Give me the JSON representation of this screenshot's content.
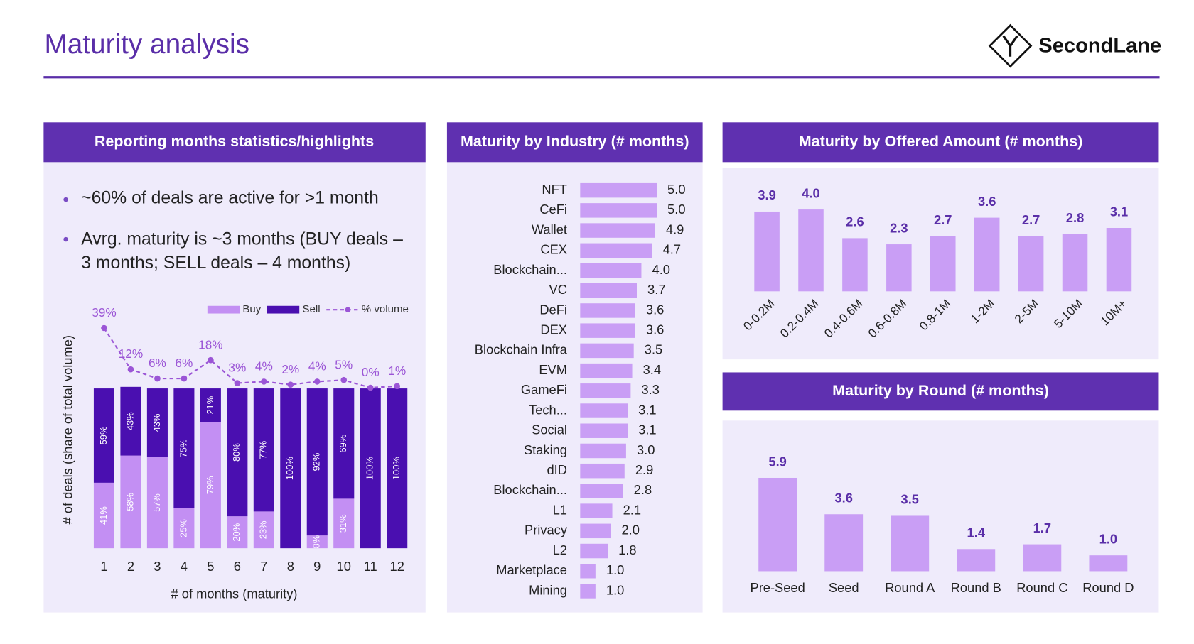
{
  "title": "Maturity analysis",
  "brand": "SecondLane",
  "highlights": {
    "title": "Reporting months statistics/highlights",
    "bullets": [
      "~60% of deals are active for >1 month",
      "Avrg. maturity is ~3 months (BUY deals – 3 months; SELL deals – 4 months)"
    ]
  },
  "chart_data": [
    {
      "type": "bar",
      "stacked": true,
      "x_label": "# of months (maturity)",
      "y_label": "# of deals (share of total volume)",
      "categories": [
        "1",
        "2",
        "3",
        "4",
        "5",
        "6",
        "7",
        "8",
        "9",
        "10",
        "11",
        "12"
      ],
      "ylim": [
        0,
        100
      ],
      "y2lim": [
        0,
        40
      ],
      "legend": "top-right",
      "series": [
        {
          "name": "Buy",
          "color": "#c38ff3",
          "values": [
            41,
            58,
            57,
            25,
            79,
            20,
            23,
            0,
            8,
            31,
            0,
            0
          ],
          "value_labels": [
            "41%",
            "58%",
            "57%",
            "25%",
            "79%",
            "20%",
            "23%",
            null,
            "8%",
            "31%",
            null,
            null
          ]
        },
        {
          "name": "Sell",
          "color": "#4a0fb0",
          "values": [
            59,
            43,
            43,
            75,
            21,
            80,
            77,
            100,
            92,
            69,
            100,
            100
          ],
          "value_labels": [
            "59%",
            "43%",
            "43%",
            "75%",
            "21%",
            "80%",
            "77%",
            "100%",
            "92%",
            "69%",
            "100%",
            "100%"
          ]
        },
        {
          "name": "% volume",
          "type": "line",
          "axis": "y2",
          "color": "#9b55d6",
          "values": [
            39,
            12,
            6,
            6,
            18,
            3,
            4,
            2,
            4,
            5,
            0,
            1
          ],
          "value_labels": [
            "39%",
            "12%",
            "6%",
            "6%",
            "18%",
            "3%",
            "4%",
            "2%",
            "4%",
            "5%",
            "0%",
            "1%"
          ]
        }
      ]
    },
    {
      "type": "barh",
      "title": "Maturity by Industry (# months)",
      "color": "#c99ef5",
      "categories": [
        "NFT",
        "CeFi",
        "Wallet",
        "CEX",
        "Blockchain...",
        "VC",
        "DeFi",
        "DEX",
        "Blockchain Infra",
        "EVM",
        "GameFi",
        "Tech...",
        "Social",
        "Staking",
        "dID",
        "Blockchain...",
        "L1",
        "Privacy",
        "L2",
        "Marketplace",
        "Mining"
      ],
      "values": [
        5.0,
        5.0,
        4.9,
        4.7,
        4.0,
        3.7,
        3.6,
        3.6,
        3.5,
        3.4,
        3.3,
        3.1,
        3.1,
        3.0,
        2.9,
        2.8,
        2.1,
        2.0,
        1.8,
        1.0,
        1.0
      ],
      "value_labels": [
        "5.0",
        "5.0",
        "4.9",
        "4.7",
        "4.0",
        "3.7",
        "3.6",
        "3.6",
        "3.5",
        "3.4",
        "3.3",
        "3.1",
        "3.1",
        "3.0",
        "2.9",
        "2.8",
        "2.1",
        "2.0",
        "1.8",
        "1.0",
        "1.0"
      ],
      "xlim": [
        0,
        5
      ]
    },
    {
      "type": "bar",
      "title": "Maturity by Offered Amount (# months)",
      "color": "#c99ef5",
      "categories": [
        "0-0.2M",
        "0.2-0.4M",
        "0.4-0.6M",
        "0.6-0.8M",
        "0.8-1M",
        "1-2M",
        "2-5M",
        "5-10M",
        "10M+"
      ],
      "values": [
        3.9,
        4.0,
        2.6,
        2.3,
        2.7,
        3.6,
        2.7,
        2.8,
        3.1
      ],
      "value_labels": [
        "3.9",
        "4.0",
        "2.6",
        "2.3",
        "2.7",
        "3.6",
        "2.7",
        "2.8",
        "3.1"
      ],
      "ylim": [
        0,
        4.4
      ]
    },
    {
      "type": "bar",
      "title": "Maturity by Round (# months)",
      "color": "#c99ef5",
      "categories": [
        "Pre-Seed",
        "Seed",
        "Round A",
        "Round B",
        "Round C",
        "Round D"
      ],
      "values": [
        5.9,
        3.6,
        3.5,
        1.4,
        1.7,
        1.0
      ],
      "value_labels": [
        "5.9",
        "3.6",
        "3.5",
        "1.4",
        "1.7",
        "1.0"
      ],
      "ylim": [
        0,
        6.5
      ]
    }
  ]
}
